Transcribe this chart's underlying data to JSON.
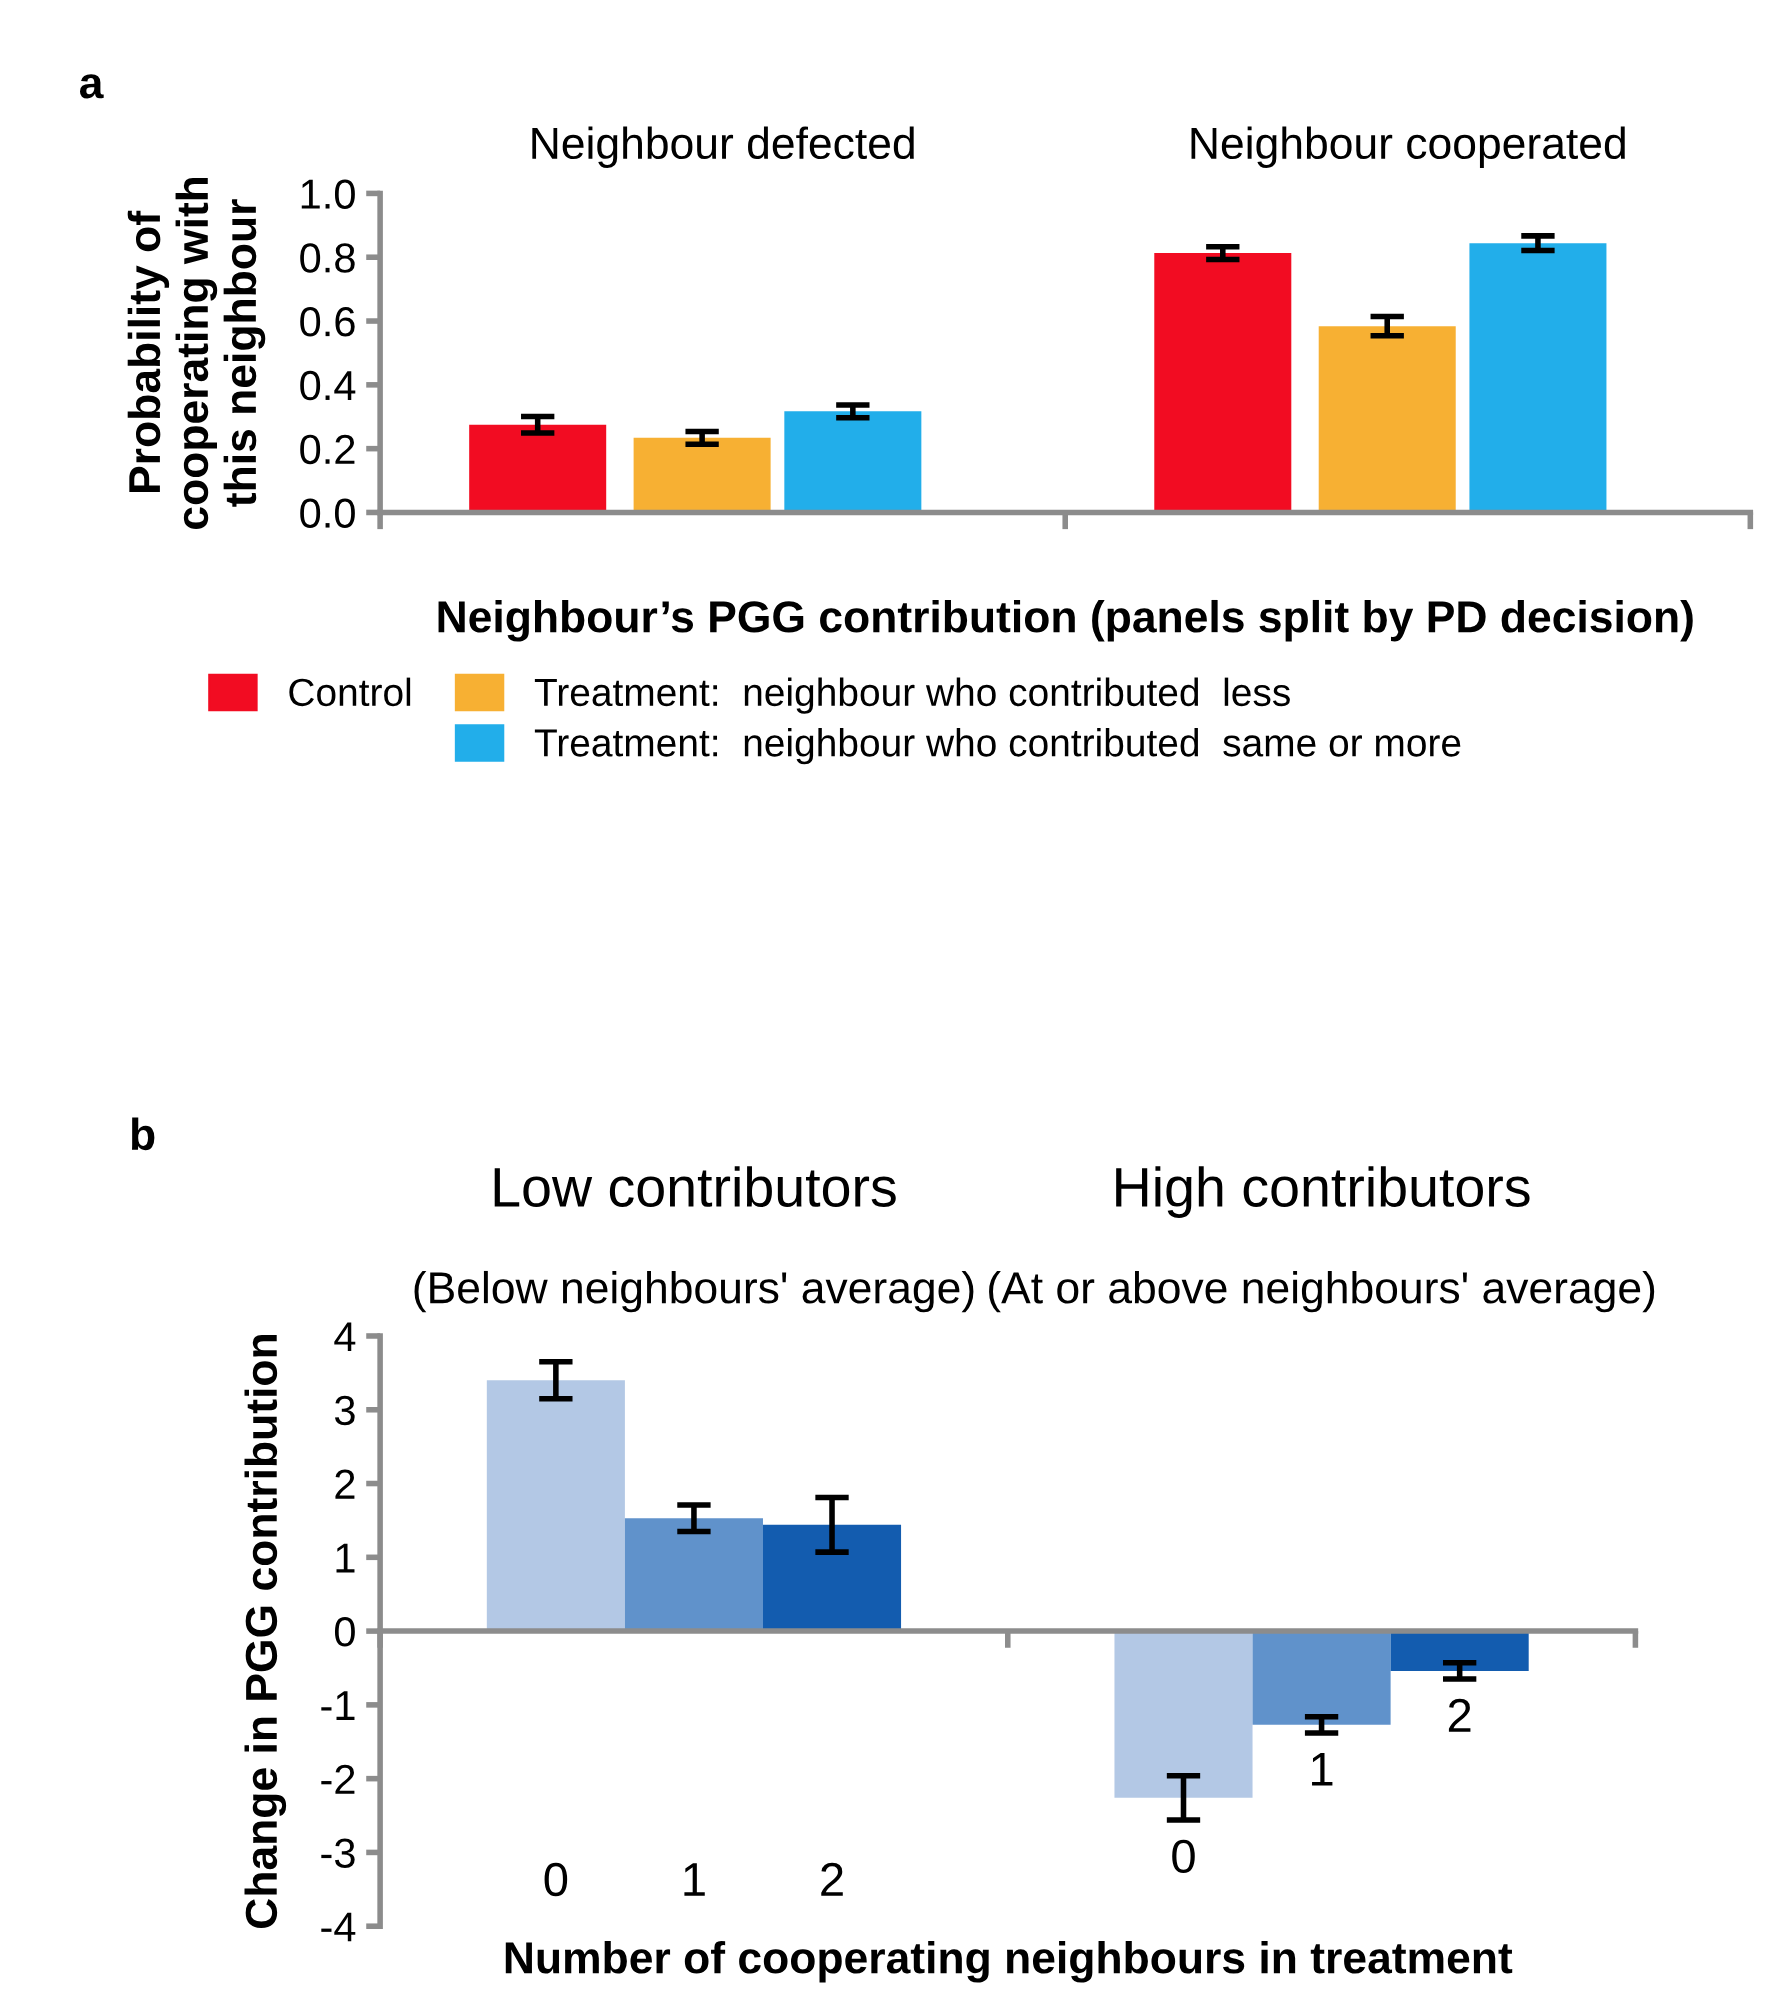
{
  "chart_data": [
    {
      "type": "bar",
      "title": "a",
      "xlabel": "Neighbour’s PGG contribution (panels split by PD decision)",
      "ylabel": "Probability of\ncooperating with\nthis neighbour",
      "categories": [
        "Neighbour defected",
        "Neighbour cooperated"
      ],
      "series": [
        {
          "name": "Control",
          "color": "#f20c22",
          "values": [
            0.275,
            0.813
          ],
          "errors": [
            0.026,
            0.02
          ]
        },
        {
          "name": "Treatment:  neighbour who contributed  less",
          "color": "#f7b033",
          "values": [
            0.234,
            0.584
          ],
          "errors": [
            0.02,
            0.03
          ]
        },
        {
          "name": "Treatment:  neighbour who contributed  same or more",
          "color": "#22aeea",
          "values": [
            0.317,
            0.844
          ],
          "errors": [
            0.02,
            0.023
          ]
        }
      ],
      "ylim": [
        0,
        1.0
      ],
      "yticks": [
        {
          "value": 0,
          "label": "0.0"
        },
        {
          "value": 0.2,
          "label": "0.2"
        },
        {
          "value": 0.4,
          "label": "0.4"
        },
        {
          "value": 0.6,
          "label": "0.6"
        },
        {
          "value": 0.8,
          "label": "0.8"
        },
        {
          "value": 1.0,
          "label": "1.0"
        }
      ],
      "legend": "bottom"
    },
    {
      "type": "bar",
      "title": "b",
      "xlabel": "Number of cooperating neighbours in treatment",
      "ylabel": "Change in PGG contribution",
      "categories": [
        "Low contributors",
        "High contributors"
      ],
      "annotations": [
        "(Below neighbours' average)",
        "(At or above neighbours' average)"
      ],
      "series": [
        {
          "name": "0",
          "color": "#b3c8e5",
          "values": [
            3.4,
            -2.26
          ],
          "errors": [
            0.25,
            0.3
          ]
        },
        {
          "name": "1",
          "color": "#6092cb",
          "values": [
            1.53,
            -1.27
          ],
          "errors": [
            0.18,
            0.11
          ]
        },
        {
          "name": "2",
          "color": "#135caf",
          "values": [
            1.44,
            -0.54
          ],
          "errors": [
            0.37,
            0.11
          ]
        }
      ],
      "ylim": [
        -4,
        4
      ],
      "yticks": [
        -4,
        -3,
        -2,
        -1,
        0,
        1,
        2,
        3,
        4
      ],
      "legend": false
    }
  ]
}
